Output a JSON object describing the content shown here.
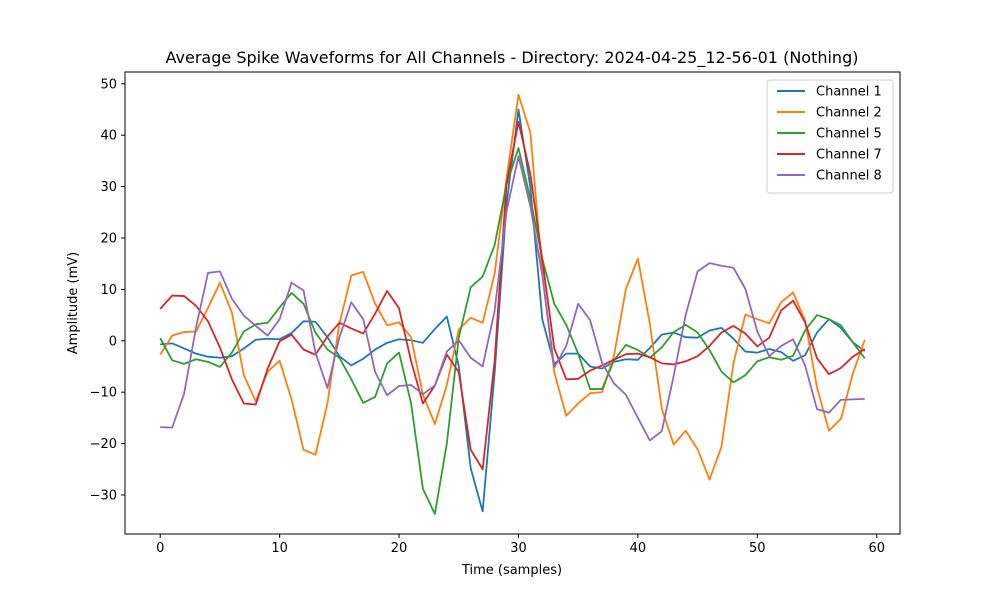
{
  "chart_data": {
    "type": "line",
    "title": "Average Spike Waveforms for All Channels - Directory: 2024-04-25_12-56-01 (Nothing)",
    "xlabel": "Time (samples)",
    "ylabel": "Amplitude (mV)",
    "xlim": [
      -2.95,
      61.95
    ],
    "ylim": [
      -37.6,
      52.3
    ],
    "xticks": [
      0,
      10,
      20,
      30,
      40,
      50,
      60
    ],
    "yticks": [
      -30,
      -20,
      -10,
      0,
      10,
      20,
      30,
      40,
      50
    ],
    "legend_position": "top-right",
    "grid": false,
    "x": [
      0,
      1,
      2,
      3,
      4,
      5,
      6,
      7,
      8,
      9,
      10,
      11,
      12,
      13,
      14,
      15,
      16,
      17,
      18,
      19,
      20,
      21,
      22,
      23,
      24,
      25,
      26,
      27,
      28,
      29,
      30,
      31,
      32,
      33,
      34,
      35,
      36,
      37,
      38,
      39,
      40,
      41,
      42,
      43,
      44,
      45,
      46,
      47,
      48,
      49,
      50,
      51,
      52,
      53,
      54,
      55,
      56,
      57,
      58,
      59
    ],
    "series": [
      {
        "name": "Channel 1",
        "color": "#1f77b4",
        "values": [
          -0.7,
          -0.5,
          -1.5,
          -2.5,
          -3.1,
          -3.3,
          -3.0,
          -1.5,
          0.2,
          0.4,
          0.3,
          1.5,
          3.8,
          3.7,
          0.7,
          -3.0,
          -4.8,
          -3.5,
          -1.7,
          -0.4,
          0.3,
          0.1,
          -0.4,
          2.3,
          4.7,
          -4.9,
          -24.8,
          -33.2,
          -6.4,
          26.6,
          45.0,
          29.8,
          4.1,
          -4.5,
          -2.5,
          -2.5,
          -5.0,
          -5.4,
          -4.1,
          -3.6,
          -3.7,
          -1.4,
          1.2,
          1.6,
          0.7,
          0.6,
          2.0,
          2.5,
          0.4,
          -2.1,
          -2.3,
          -1.6,
          -2.2,
          -3.9,
          -2.8,
          1.6,
          4.2,
          2.5,
          -0.3,
          -2.0
        ]
      },
      {
        "name": "Channel 2",
        "color": "#ff7f0e",
        "values": [
          -2.7,
          1.0,
          1.7,
          1.8,
          6.4,
          11.3,
          5.5,
          -6.7,
          -11.8,
          -6.0,
          -3.9,
          -11.4,
          -21.2,
          -22.2,
          -12.2,
          3.3,
          12.7,
          13.4,
          7.2,
          3.0,
          3.6,
          0.7,
          -10.5,
          -16.2,
          -8.6,
          2.2,
          4.5,
          3.5,
          13.0,
          31.6,
          47.9,
          40.5,
          12.9,
          -6.2,
          -14.6,
          -12.2,
          -10.2,
          -10.0,
          -2.9,
          10.1,
          16.0,
          3.3,
          -13.2,
          -20.2,
          -17.5,
          -21.1,
          -27.0,
          -20.6,
          -4.4,
          5.1,
          4.2,
          3.4,
          7.5,
          9.4,
          3.9,
          -9.1,
          -17.5,
          -15.2,
          -6.4,
          0.2
        ]
      },
      {
        "name": "Channel 5",
        "color": "#2ca02c",
        "values": [
          0.5,
          -3.8,
          -4.5,
          -3.6,
          -4.1,
          -5.1,
          -2.3,
          1.8,
          3.2,
          3.5,
          6.5,
          9.3,
          7.2,
          1.6,
          -1.7,
          -3.3,
          -7.5,
          -12.1,
          -10.9,
          -4.4,
          -2.3,
          -12.1,
          -28.8,
          -33.7,
          -20.0,
          0.6,
          10.4,
          12.5,
          18.6,
          30.4,
          37.5,
          27.6,
          15.9,
          7.2,
          3.1,
          -2.5,
          -9.4,
          -9.4,
          -3.8,
          -0.8,
          -1.8,
          -3.3,
          -1.3,
          1.7,
          3.1,
          1.6,
          -1.8,
          -6.0,
          -8.1,
          -6.7,
          -4.0,
          -3.2,
          -3.7,
          -2.9,
          2.0,
          5.0,
          4.2,
          3.0,
          -0.3,
          -3.4
        ]
      },
      {
        "name": "Channel 7",
        "color": "#d62728",
        "values": [
          6.2,
          8.8,
          8.7,
          6.8,
          3.8,
          -1.3,
          -7.5,
          -12.2,
          -12.4,
          -5.4,
          -0.1,
          1.2,
          -1.7,
          -2.7,
          0.8,
          3.5,
          2.4,
          1.4,
          5.3,
          9.7,
          6.3,
          -3.9,
          -12.2,
          -8.7,
          -2.7,
          -6.1,
          -21.2,
          -25.0,
          -4.0,
          30.6,
          42.6,
          32.4,
          15.7,
          -1.5,
          -7.5,
          -7.4,
          -5.8,
          -4.8,
          -3.7,
          -2.6,
          -2.5,
          -3.2,
          -4.4,
          -4.6,
          -4.0,
          -3.0,
          -1.0,
          1.6,
          2.9,
          1.4,
          -1.1,
          0.6,
          5.9,
          7.8,
          3.6,
          -3.4,
          -6.5,
          -5.3,
          -3.1,
          -1.6
        ]
      },
      {
        "name": "Channel 8",
        "color": "#9467bd",
        "values": [
          -16.8,
          -16.9,
          -10.3,
          2.6,
          13.2,
          13.5,
          8.2,
          4.9,
          2.9,
          1.0,
          4.2,
          11.3,
          9.8,
          -2.3,
          -9.2,
          0.6,
          7.5,
          4.2,
          -6.1,
          -10.6,
          -8.8,
          -8.6,
          -10.4,
          -8.7,
          -2.1,
          0.1,
          -3.3,
          -5.0,
          5.8,
          25.2,
          35.9,
          26.1,
          12.7,
          -5.2,
          -1.0,
          7.2,
          4.0,
          -4.3,
          -8.3,
          -10.5,
          -15.0,
          -19.4,
          -17.6,
          -6.8,
          5.0,
          13.5,
          15.1,
          14.6,
          14.2,
          10.1,
          1.8,
          -3.0,
          -1.0,
          0.3,
          -4.8,
          -13.3,
          -14.0,
          -11.5,
          -11.4,
          -11.3
        ]
      }
    ]
  }
}
